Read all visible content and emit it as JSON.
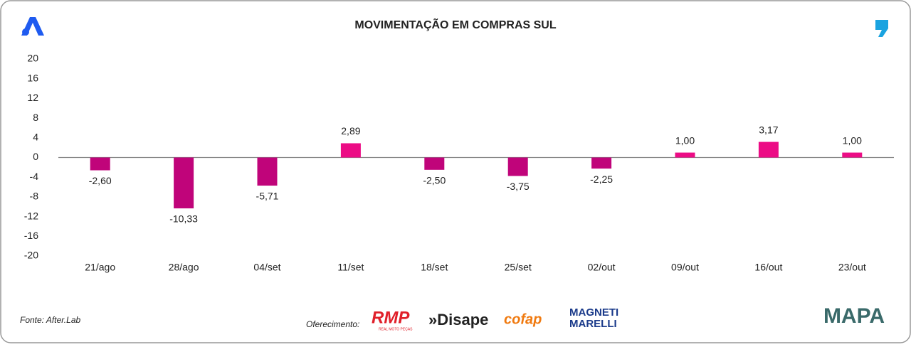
{
  "chart_data": {
    "type": "bar",
    "title": "MOVIMENTAÇÃO EM COMPRAS SUL",
    "categories": [
      "21/ago",
      "28/ago",
      "04/set",
      "11/set",
      "18/set",
      "25/set",
      "02/out",
      "09/out",
      "16/out",
      "23/out"
    ],
    "values": [
      -2.6,
      -10.33,
      -5.71,
      2.89,
      -2.5,
      -3.75,
      -2.25,
      1.0,
      3.17,
      1.0
    ],
    "value_labels": [
      "-2,60",
      "-10,33",
      "-5,71",
      "2,89",
      "-2,50",
      "-3,75",
      "-2,25",
      "1,00",
      "3,17",
      "1,00"
    ],
    "color": "#ec0c85",
    "negative_color": "#c0047a",
    "ylim": [
      -20,
      20
    ],
    "yticks": [
      20,
      16,
      12,
      8,
      4,
      0,
      -4,
      -8,
      -12,
      -16,
      -20
    ],
    "grid": false
  },
  "footer": {
    "source": "Fonte: After.Lab",
    "sponsor_label": "Oferecimento:",
    "sponsors": [
      "RMP",
      "REAL MOTO PEÇAS",
      "»Disape",
      "cofap",
      "MAGNETI",
      "MARELLI"
    ],
    "brand": "MAPA"
  }
}
